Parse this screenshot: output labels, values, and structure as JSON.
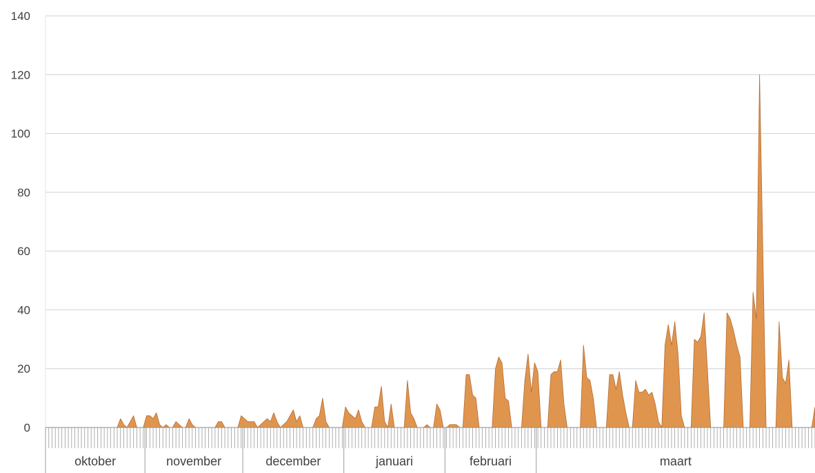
{
  "chart_data": {
    "type": "area",
    "title": "",
    "xlabel": "",
    "ylabel": "",
    "ylim": [
      0,
      140
    ],
    "yticks": [
      0,
      20,
      40,
      60,
      80,
      100,
      120,
      140
    ],
    "grid": true,
    "months": [
      "oktober",
      "november",
      "december",
      "januari",
      "februari",
      "maart"
    ],
    "month_days": [
      31,
      30,
      31,
      31,
      28,
      31
    ],
    "start_date": "2019-10-01",
    "series": [
      {
        "color": "#e0954e",
        "values": [
          0,
          0,
          0,
          0,
          0,
          0,
          0,
          0,
          0,
          0,
          0,
          0,
          0,
          0,
          0,
          0,
          0,
          0,
          0,
          0,
          0,
          0,
          0,
          3,
          1,
          0,
          2,
          4,
          0,
          0,
          0,
          4,
          4,
          3,
          5,
          1,
          0,
          1,
          0,
          0,
          2,
          1,
          0,
          0,
          3,
          1,
          0,
          0,
          0,
          0,
          0,
          0,
          0,
          2,
          2,
          0,
          0,
          0,
          0,
          0,
          4,
          3,
          2,
          2,
          2,
          0,
          1,
          2,
          3,
          2,
          5,
          2,
          0,
          1,
          2,
          4,
          6,
          2,
          4,
          0,
          0,
          0,
          0,
          3,
          4,
          10,
          2,
          0,
          0,
          0,
          0,
          0,
          7,
          5,
          4,
          3,
          6,
          2,
          0,
          0,
          0,
          7,
          7,
          14,
          2,
          0,
          8,
          0,
          0,
          0,
          0,
          16,
          5,
          3,
          0,
          0,
          0,
          1,
          0,
          0,
          8,
          6,
          0,
          0,
          1,
          1,
          1,
          0,
          0,
          18,
          18,
          11,
          10,
          0,
          0,
          0,
          0,
          0,
          20,
          24,
          22,
          10,
          9,
          0,
          0,
          0,
          0,
          16,
          25,
          12,
          22,
          19,
          0,
          0,
          0,
          18,
          19,
          19,
          23,
          8,
          0,
          0,
          0,
          0,
          0,
          28,
          17,
          16,
          10,
          0,
          0,
          0,
          0,
          18,
          18,
          13,
          19,
          11,
          5,
          0,
          0,
          16,
          12,
          12,
          13,
          11,
          12,
          8,
          2,
          0,
          28,
          35,
          28,
          36,
          25,
          4,
          0,
          0,
          0,
          30,
          29,
          31,
          39,
          20,
          0,
          0,
          0,
          0,
          0,
          39,
          37,
          33,
          28,
          24,
          0,
          0,
          0,
          46,
          37,
          120,
          60,
          0,
          0,
          0,
          0,
          36,
          17,
          15,
          23,
          0,
          0,
          0,
          0,
          0,
          0,
          0,
          7
        ]
      }
    ]
  }
}
